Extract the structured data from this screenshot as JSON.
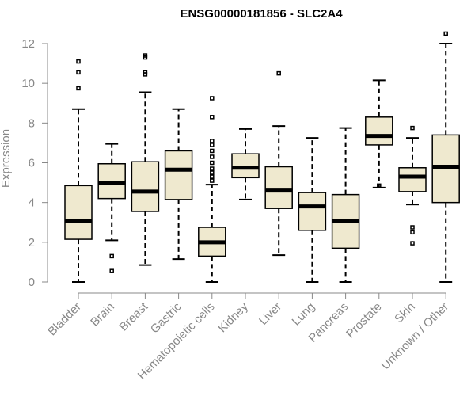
{
  "chart_data": {
    "type": "box",
    "title": "ENSG00000181856 - SLC2A4",
    "xlabel": "",
    "ylabel": "Expression",
    "ylim": [
      0,
      12
    ],
    "yticks": [
      0,
      2,
      4,
      6,
      8,
      10,
      12
    ],
    "categories": [
      "Bladder",
      "Brain",
      "Breast",
      "Gastric",
      "Hematopoietic cells",
      "Kidney",
      "Liver",
      "Lung",
      "Pancreas",
      "Prostate",
      "Skin",
      "Unknown / Other"
    ],
    "boxes": [
      {
        "min": 0.0,
        "q1": 2.15,
        "median": 3.05,
        "q3": 4.85,
        "max": 8.7,
        "outliers": [
          9.75,
          10.55,
          11.1
        ]
      },
      {
        "min": 2.1,
        "q1": 4.2,
        "median": 5.0,
        "q3": 5.95,
        "max": 6.95,
        "outliers": [
          1.3,
          0.55
        ]
      },
      {
        "min": 0.85,
        "q1": 3.55,
        "median": 4.55,
        "q3": 6.05,
        "max": 9.55,
        "outliers": [
          10.45,
          10.55,
          11.3,
          11.4
        ]
      },
      {
        "min": 1.15,
        "q1": 4.15,
        "median": 5.65,
        "q3": 6.6,
        "max": 8.7,
        "outliers": []
      },
      {
        "min": 0.0,
        "q1": 1.3,
        "median": 2.0,
        "q3": 2.75,
        "max": 4.9,
        "outliers": [
          5.1,
          5.3,
          5.5,
          5.7,
          6.0,
          6.3,
          6.6,
          6.9,
          7.1,
          8.3,
          9.25
        ]
      },
      {
        "min": 4.15,
        "q1": 5.25,
        "median": 5.75,
        "q3": 6.45,
        "max": 7.7,
        "outliers": []
      },
      {
        "min": 1.35,
        "q1": 3.7,
        "median": 4.6,
        "q3": 5.8,
        "max": 7.85,
        "outliers": [
          10.5
        ]
      },
      {
        "min": 0.0,
        "q1": 2.6,
        "median": 3.8,
        "q3": 4.5,
        "max": 7.25,
        "outliers": []
      },
      {
        "min": 0.0,
        "q1": 1.7,
        "median": 3.05,
        "q3": 4.4,
        "max": 7.75,
        "outliers": []
      },
      {
        "min": 4.75,
        "q1": 6.9,
        "median": 7.35,
        "q3": 8.3,
        "max": 10.15,
        "outliers": [
          4.85
        ]
      },
      {
        "min": 3.9,
        "q1": 4.55,
        "median": 5.3,
        "q3": 5.75,
        "max": 7.25,
        "outliers": [
          7.75,
          2.75,
          2.5,
          1.95
        ]
      },
      {
        "min": 0.0,
        "q1": 4.0,
        "median": 5.8,
        "q3": 7.4,
        "max": 12.0,
        "outliers": [
          12.5
        ]
      }
    ],
    "box_fill": "#efe9cf",
    "grid": false,
    "legend": "none"
  }
}
